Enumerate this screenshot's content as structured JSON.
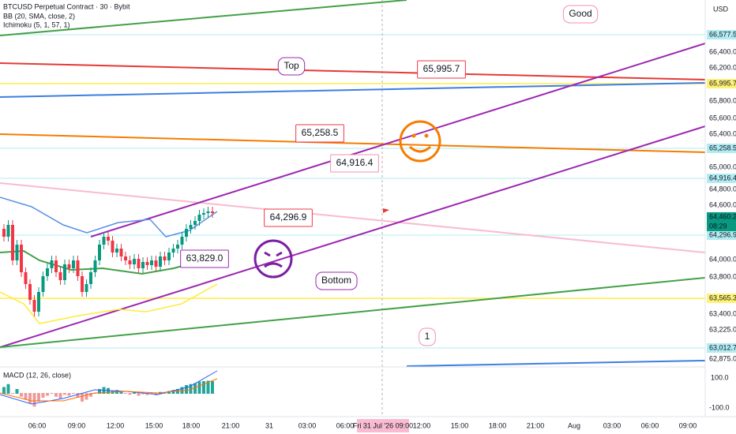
{
  "header": {
    "symbol": "BTCUSD Perpetual Contract · 30 · Bybit",
    "indicators": [
      "BB (20, SMA, close, 2)",
      "Ichimoku (5, 1, 57, 1)"
    ]
  },
  "price_axis": {
    "currency": "USD",
    "labels": [
      {
        "text": "66,577.5",
        "bg": "#b2ebf2"
      },
      {
        "text": "66,400.0"
      },
      {
        "text": "66,200.0"
      },
      {
        "text": "65,995.7",
        "bg": "#fff176"
      },
      {
        "text": "65,800.0"
      },
      {
        "text": "65,600.0"
      },
      {
        "text": "65,400.0"
      },
      {
        "text": "65,258.5",
        "bg": "#b2ebf2"
      },
      {
        "text": "65,000.0"
      },
      {
        "text": "64,916.4",
        "bg": "#b2ebf2"
      },
      {
        "text": "64,800.0"
      },
      {
        "text": "64,600.0"
      },
      {
        "text": "64,460.2",
        "bg": "#089981"
      },
      {
        "text": "64,296.9",
        "bg": "#b2ebf2"
      },
      {
        "text": "64,000.0"
      },
      {
        "text": "63,800.0"
      },
      {
        "text": "63,565.3",
        "bg": "#fff176"
      },
      {
        "text": "63,400.0"
      },
      {
        "text": "63,225.0"
      },
      {
        "text": "63,012.7",
        "bg": "#b2ebf2"
      },
      {
        "text": "62,875.0"
      }
    ],
    "countdown": "08:29"
  },
  "macd": {
    "title": "MACD (12, 26, close)",
    "axis": [
      "100.0",
      "-100.0"
    ]
  },
  "time_axis": {
    "labels": [
      "06:00",
      "09:00",
      "12:00",
      "15:00",
      "18:00",
      "21:00",
      "31",
      "03:00",
      "06:00",
      "12:00",
      "15:00",
      "18:00",
      "21:00",
      "Aug",
      "03:00",
      "06:00",
      "09:00"
    ],
    "cursor": "Fri 31 Jul '26  09:00"
  },
  "annotations": [
    "Good",
    "Top",
    "65,995.7",
    "65,258.5",
    "64,916.4",
    "64,296.9",
    "63,829.0",
    "Bottom",
    "1"
  ]
}
